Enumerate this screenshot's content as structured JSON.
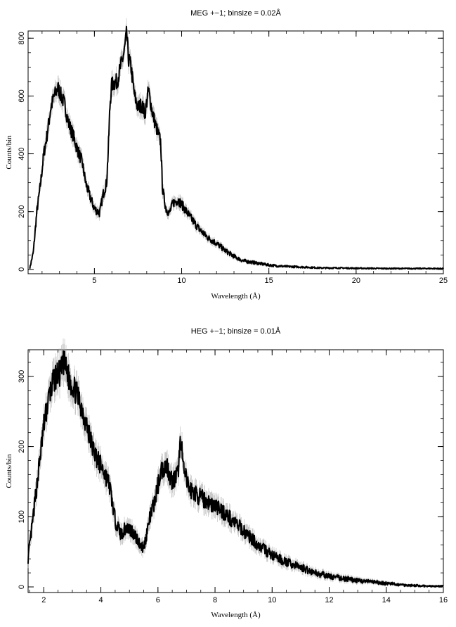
{
  "chart_data": [
    {
      "type": "line",
      "title": "MEG +−1; binsize = 0.02Å",
      "xlabel": "Wavelength (Å)",
      "ylabel": "Counts/bin",
      "xlim": [
        1.2,
        25
      ],
      "ylim": [
        -15,
        825
      ],
      "xticks_major": [
        5,
        10,
        15,
        20,
        25
      ],
      "xtick_labels": [
        "5",
        "10",
        "15",
        "20",
        "25"
      ],
      "yticks_major": [
        0,
        200,
        400,
        600,
        800
      ],
      "ytick_labels": [
        "0",
        "200",
        "400",
        "600",
        "800"
      ],
      "grid": false,
      "error_bars": true,
      "series": [
        {
          "x": [
            1.3,
            1.5,
            1.7,
            1.9,
            2.1,
            2.3,
            2.5,
            2.7,
            2.9,
            3.0,
            3.1,
            3.3,
            3.5,
            3.8,
            4.0,
            4.3,
            4.5,
            4.7,
            5.0,
            5.3,
            5.5,
            5.7,
            5.8,
            5.9,
            6.0,
            6.1,
            6.3,
            6.5,
            6.7,
            6.85,
            6.95,
            7.1,
            7.3,
            7.5,
            7.7,
            7.9,
            8.1,
            8.3,
            8.5,
            8.8,
            8.9,
            9.1,
            9.3,
            9.5,
            9.8,
            10.0,
            10.5,
            11.0,
            11.5,
            12.0,
            12.5,
            13.0,
            13.5,
            14.0,
            14.5,
            15.0,
            15.5,
            16.0,
            17.0,
            18.0,
            19.0,
            20.0,
            22.0,
            25.0
          ],
          "y": [
            5,
            60,
            200,
            290,
            400,
            470,
            560,
            600,
            630,
            615,
            600,
            570,
            510,
            460,
            420,
            370,
            300,
            260,
            210,
            195,
            260,
            300,
            420,
            580,
            640,
            645,
            650,
            700,
            750,
            815,
            730,
            700,
            600,
            560,
            570,
            540,
            620,
            550,
            500,
            440,
            280,
            210,
            195,
            230,
            240,
            225,
            180,
            140,
            110,
            90,
            65,
            45,
            30,
            25,
            20,
            15,
            12,
            10,
            8,
            5,
            5,
            4,
            3,
            3
          ]
        }
      ]
    },
    {
      "type": "line",
      "title": "HEG +−1; binsize = 0.01Å",
      "xlabel": "Wavelength (Å)",
      "ylabel": "Counts/bin",
      "xlim": [
        1.45,
        16
      ],
      "ylim": [
        -8,
        338
      ],
      "xticks_major": [
        2,
        4,
        6,
        8,
        10,
        12,
        14,
        16
      ],
      "xtick_labels": [
        "2",
        "4",
        "6",
        "8",
        "10",
        "12",
        "14",
        "16"
      ],
      "yticks_major": [
        0,
        100,
        200,
        300
      ],
      "ytick_labels": [
        "0",
        "100",
        "200",
        "300"
      ],
      "grid": false,
      "error_bars": true,
      "series": [
        {
          "x": [
            1.45,
            1.6,
            1.8,
            2.0,
            2.2,
            2.4,
            2.6,
            2.7,
            2.9,
            3.1,
            3.3,
            3.5,
            3.7,
            3.9,
            4.1,
            4.3,
            4.5,
            4.7,
            4.9,
            5.1,
            5.3,
            5.5,
            5.7,
            5.9,
            6.1,
            6.3,
            6.5,
            6.7,
            6.8,
            6.9,
            7.1,
            7.4,
            7.8,
            8.2,
            8.6,
            9.0,
            9.5,
            10.0,
            10.5,
            11.0,
            11.5,
            12.0,
            12.5,
            13.0,
            13.5,
            14.0,
            14.5,
            15.0,
            15.5,
            16.0
          ],
          "y": [
            40,
            90,
            160,
            230,
            275,
            300,
            305,
            320,
            295,
            280,
            260,
            230,
            200,
            180,
            165,
            145,
            95,
            75,
            85,
            80,
            65,
            55,
            95,
            125,
            165,
            175,
            150,
            160,
            215,
            165,
            140,
            130,
            120,
            110,
            95,
            80,
            60,
            45,
            35,
            28,
            20,
            15,
            12,
            9,
            7,
            5,
            3,
            2,
            1,
            1
          ]
        }
      ]
    }
  ]
}
